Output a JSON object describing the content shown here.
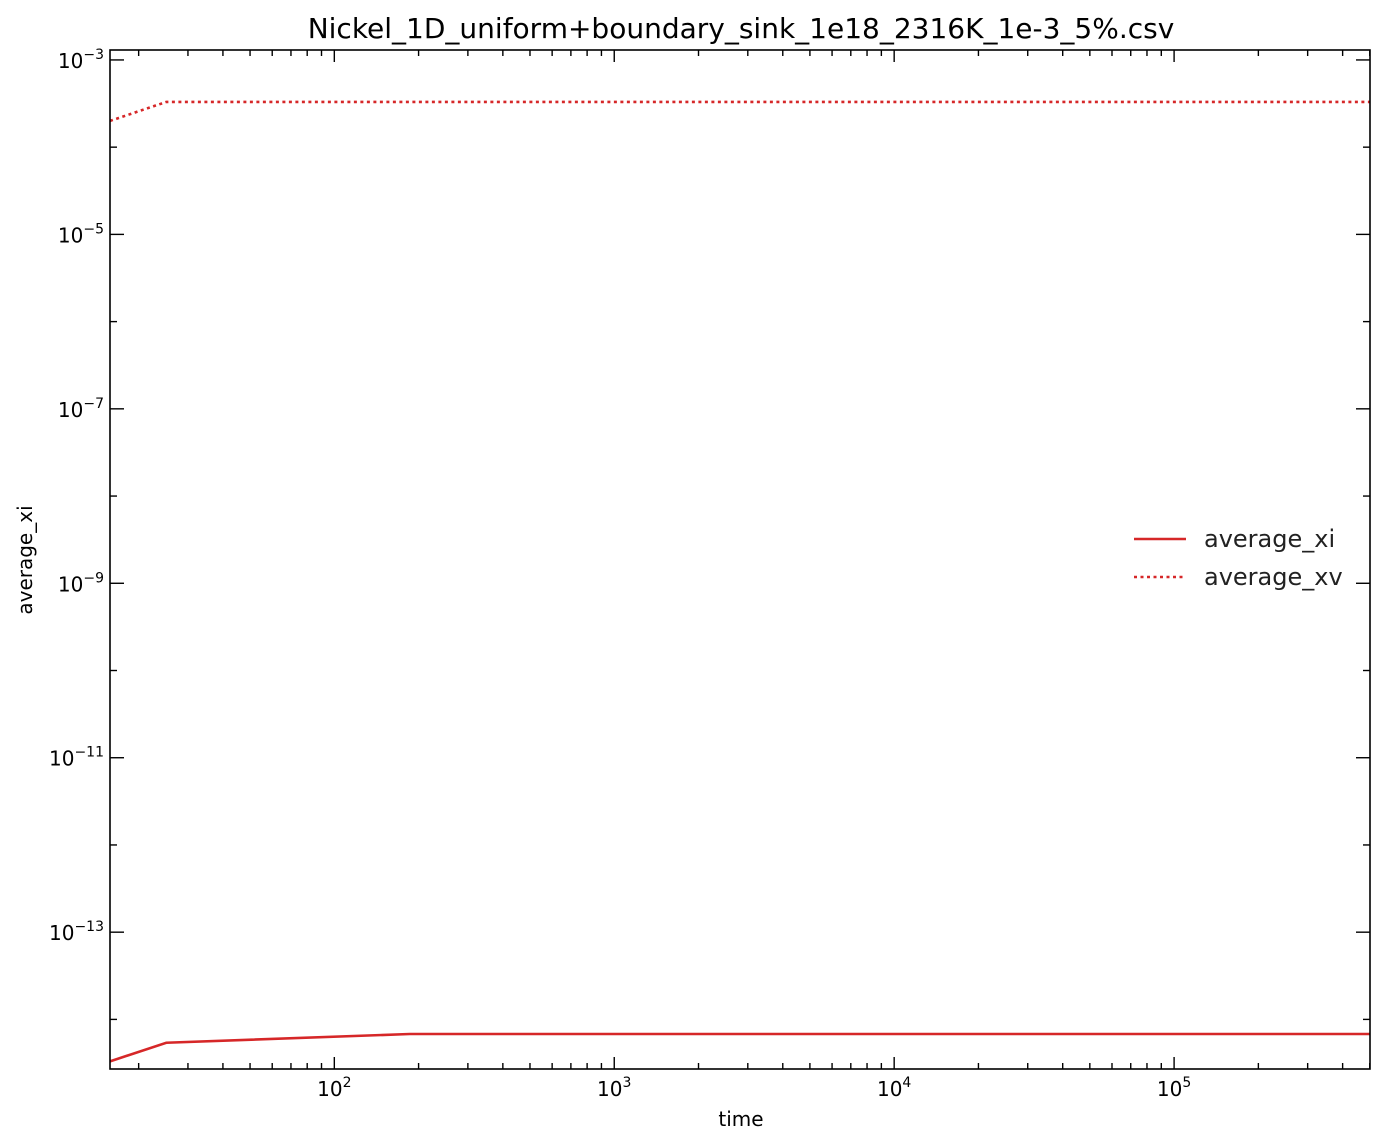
{
  "chart_data": {
    "type": "line",
    "title": "Nickel_1D_uniform+boundary_sink_1e18_2316K_1e-3_5%.csv",
    "xlabel": "time",
    "ylabel": "average_xi",
    "xscale": "log",
    "yscale": "log",
    "xlim": [
      15.8,
      501000
    ],
    "ylim": [
      2.7e-15,
      0.0013
    ],
    "x_ticks": [
      {
        "base": "10",
        "exp": "2",
        "value": 100
      },
      {
        "base": "10",
        "exp": "3",
        "value": 1000
      },
      {
        "base": "10",
        "exp": "4",
        "value": 10000
      },
      {
        "base": "10",
        "exp": "5",
        "value": 100000
      }
    ],
    "y_ticks": [
      {
        "base": "10",
        "exp": "−3",
        "value": 0.001
      },
      {
        "base": "10",
        "exp": "−5",
        "value": 1e-05
      },
      {
        "base": "10",
        "exp": "−7",
        "value": 1e-07
      },
      {
        "base": "10",
        "exp": "−9",
        "value": 1e-09
      },
      {
        "base": "10",
        "exp": "−11",
        "value": 1e-11
      },
      {
        "base": "10",
        "exp": "−13",
        "value": 1e-13
      }
    ],
    "legend_position": "center-right",
    "grid": false,
    "series": [
      {
        "name": "average_xi",
        "color": "#d62728",
        "style": "solid",
        "x": [
          15.8,
          25.1,
          186,
          501000
        ],
        "y": [
          3.3e-15,
          5.4e-15,
          6.8e-15,
          6.8e-15
        ]
      },
      {
        "name": "average_xv",
        "color": "#d62728",
        "style": "dotted",
        "x": [
          15.8,
          25.1,
          501000
        ],
        "y": [
          0.0002,
          0.00033,
          0.00033
        ]
      }
    ]
  }
}
